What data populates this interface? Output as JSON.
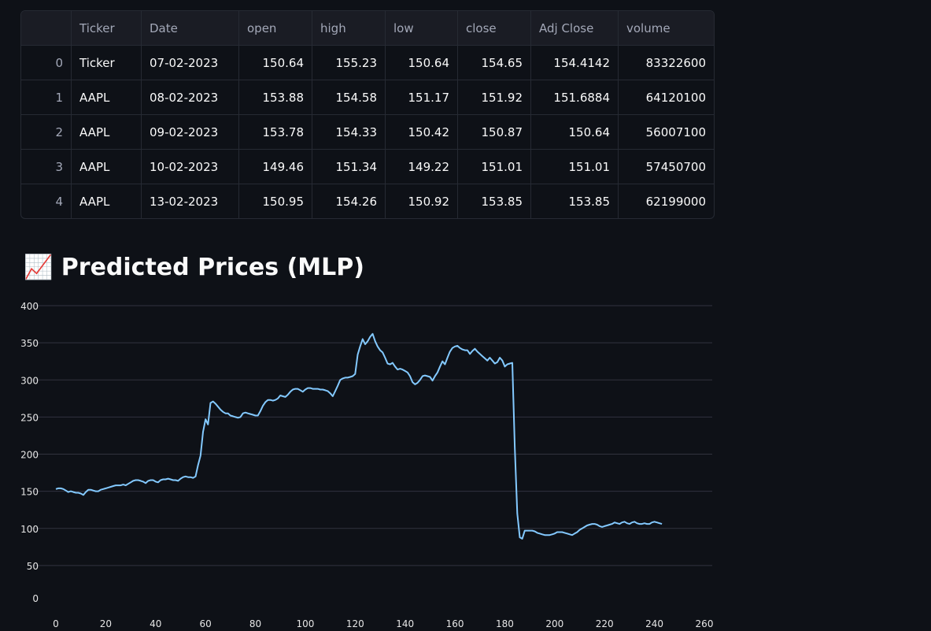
{
  "table": {
    "columns": [
      "Ticker",
      "Date",
      "open",
      "high",
      "low",
      "close",
      "Adj Close",
      "volume"
    ],
    "rows": [
      {
        "index": 0,
        "cells": [
          "Ticker",
          "07-02-2023",
          150.64,
          155.23,
          150.64,
          154.65,
          154.4142,
          83322600
        ]
      },
      {
        "index": 1,
        "cells": [
          "AAPL",
          "08-02-2023",
          153.88,
          154.58,
          151.17,
          151.92,
          151.6884,
          64120100
        ]
      },
      {
        "index": 2,
        "cells": [
          "AAPL",
          "09-02-2023",
          153.78,
          154.33,
          150.42,
          150.87,
          150.64,
          56007100
        ]
      },
      {
        "index": 3,
        "cells": [
          "AAPL",
          "10-02-2023",
          149.46,
          151.34,
          149.22,
          151.01,
          151.01,
          57450700
        ]
      },
      {
        "index": 4,
        "cells": [
          "AAPL",
          "13-02-2023",
          150.95,
          154.26,
          150.92,
          153.85,
          153.85,
          62199000
        ]
      }
    ]
  },
  "heading": "📈 Predicted Prices (MLP)",
  "chart_data": {
    "type": "line",
    "color": "#83c9ff",
    "grid": true,
    "xlim": [
      0,
      260
    ],
    "xticks": [
      0,
      20,
      40,
      60,
      80,
      100,
      120,
      140,
      160,
      180,
      200,
      220,
      240,
      260
    ],
    "ylim": [
      0,
      400
    ],
    "yticks": [
      0,
      50,
      100,
      150,
      200,
      250,
      300,
      350,
      400
    ],
    "values": [
      153,
      154,
      154,
      153,
      151,
      149,
      150,
      149,
      148,
      148,
      147,
      145,
      149,
      152,
      152,
      151,
      150,
      150,
      152,
      153,
      154,
      155,
      156,
      157,
      158,
      158,
      158,
      159,
      158,
      160,
      162,
      164,
      165,
      165,
      164,
      163,
      161,
      164,
      165,
      165,
      163,
      162,
      165,
      166,
      166,
      167,
      166,
      165,
      165,
      164,
      167,
      169,
      170,
      169,
      169,
      168,
      170,
      185,
      198,
      230,
      247,
      240,
      269,
      271,
      268,
      264,
      260,
      257,
      255,
      255,
      252,
      251,
      250,
      249,
      250,
      255,
      256,
      255,
      254,
      253,
      252,
      252,
      258,
      265,
      270,
      273,
      273,
      272,
      273,
      275,
      279,
      278,
      277,
      280,
      284,
      287,
      288,
      288,
      286,
      284,
      287,
      289,
      289,
      288,
      288,
      288,
      287,
      287,
      286,
      285,
      282,
      278,
      285,
      292,
      300,
      302,
      303,
      303,
      304,
      305,
      308,
      334,
      345,
      355,
      348,
      352,
      358,
      362,
      352,
      345,
      340,
      337,
      330,
      322,
      321,
      323,
      318,
      314,
      315,
      314,
      312,
      310,
      305,
      297,
      294,
      296,
      300,
      305,
      306,
      305,
      304,
      299,
      305,
      310,
      318,
      325,
      321,
      330,
      338,
      343,
      345,
      346,
      343,
      341,
      340,
      340,
      335,
      339,
      342,
      338,
      335,
      332,
      329,
      326,
      330,
      326,
      322,
      324,
      330,
      326,
      318,
      321,
      322,
      323,
      210,
      120,
      88,
      86,
      97,
      97,
      97,
      97,
      96,
      94,
      93,
      92,
      91,
      91,
      91,
      92,
      93,
      95,
      95,
      95,
      94,
      93,
      92,
      91,
      93,
      95,
      98,
      100,
      102,
      104,
      105,
      106,
      106,
      105,
      103,
      102,
      103,
      104,
      105,
      106,
      108,
      107,
      106,
      108,
      109,
      107,
      106,
      108,
      109,
      107,
      106,
      106,
      107,
      106,
      106,
      108,
      109,
      108,
      107,
      106
    ]
  }
}
